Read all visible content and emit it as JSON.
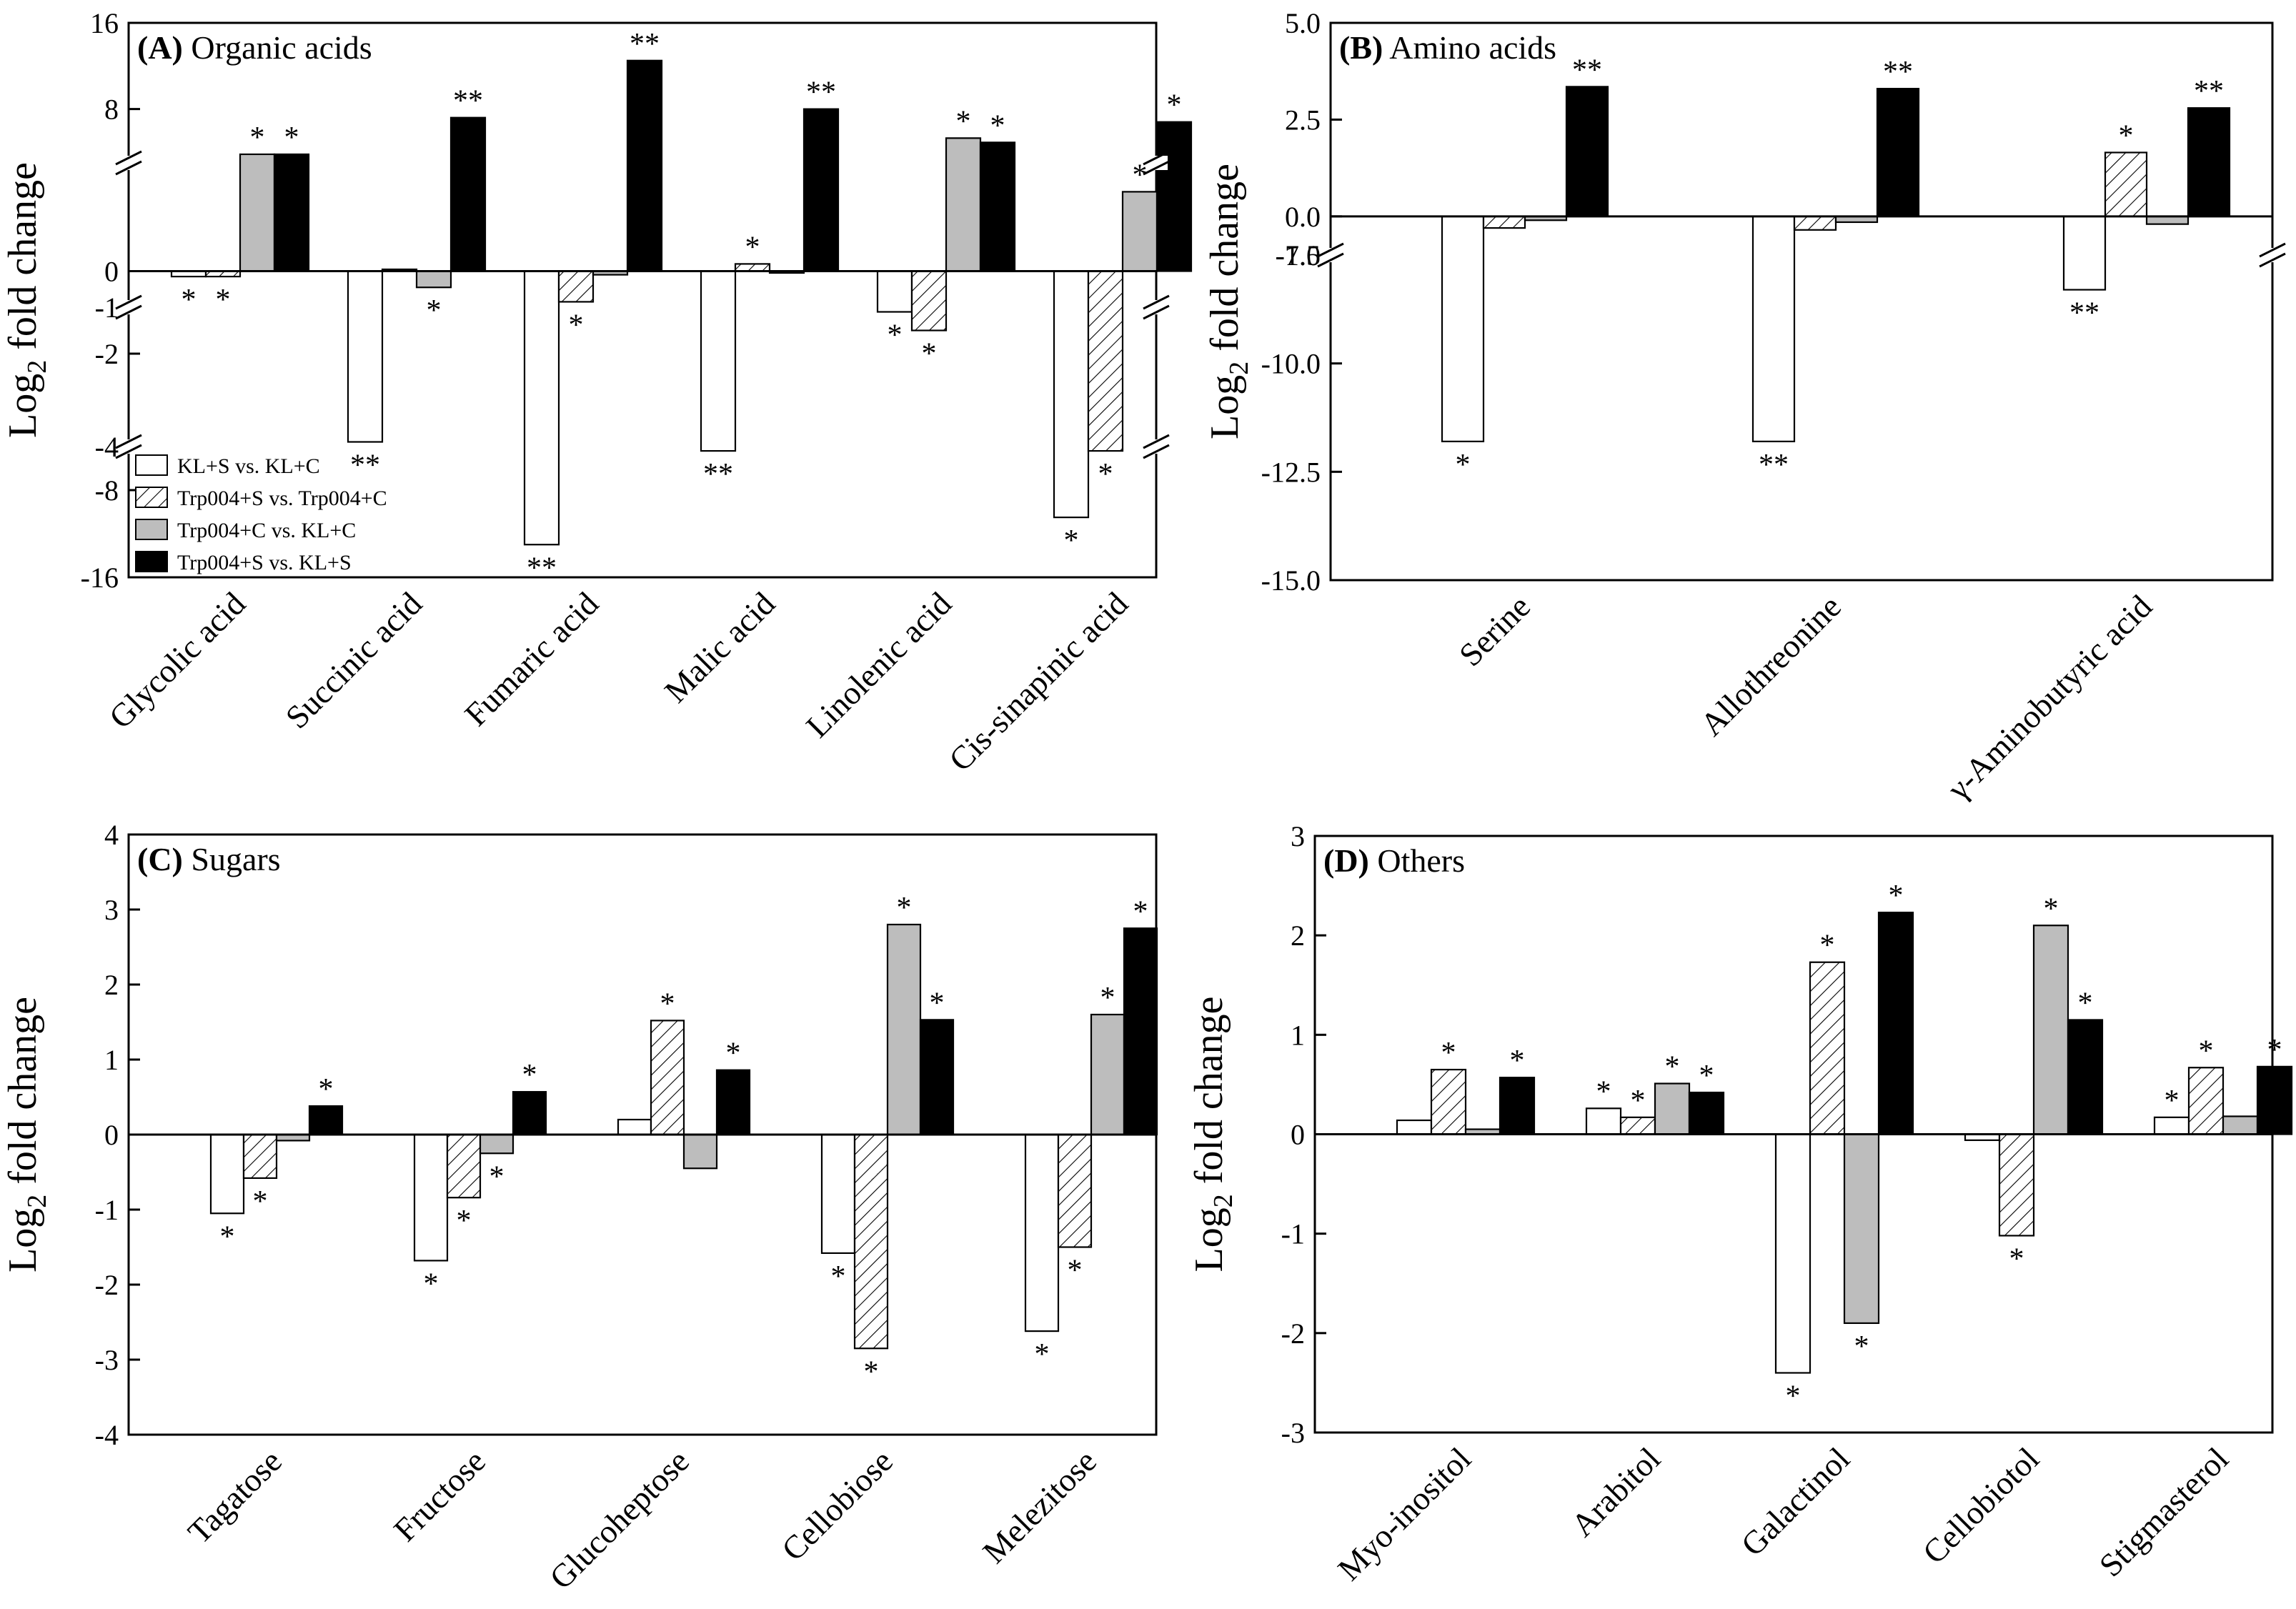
{
  "figure": {
    "ylabel_main": "Log",
    "ylabel_sub": "2",
    "ylabel_rest": " fold change"
  },
  "legend": {
    "entries": [
      {
        "label": "KL+S vs. KL+C",
        "fill": "white"
      },
      {
        "label": "Trp004+S vs. Trp004+C",
        "fill": "hatch"
      },
      {
        "label": "Trp004+C vs. KL+C",
        "fill": "gray"
      },
      {
        "label": "Trp004+S vs. KL+S",
        "fill": "black"
      }
    ]
  },
  "colors": {
    "white": "#ffffff",
    "gray": "#bdbdbd",
    "black": "#000000",
    "axis": "#000000"
  },
  "chart_data": [
    {
      "type": "bar",
      "panel_label": "(A)",
      "title": "Organic acids",
      "categories": [
        "Glycolic acid",
        "Succinic acid",
        "Fumaric acid",
        "Malic acid",
        "Linolenic acid",
        "Cis-sinapinic acid"
      ],
      "axis_breaks": [
        {
          "range": [
            -16,
            -4
          ],
          "ticks": [
            -16,
            -8
          ]
        },
        {
          "range": [
            -4,
            -1
          ],
          "ticks": [
            -4,
            -2
          ]
        },
        {
          "range": [
            -1,
            3
          ],
          "ticks": [
            -1,
            0
          ]
        },
        {
          "range": [
            3,
            16
          ],
          "ticks": [
            8,
            16
          ]
        }
      ],
      "series": [
        {
          "name": "KL+S vs. KL+C",
          "values": [
            -0.15,
            -3.9,
            -13,
            -4.4,
            -1.1,
            -10.5
          ],
          "marks": [
            "*",
            "**",
            "**",
            "**",
            "*",
            "*"
          ]
        },
        {
          "name": "Trp004+S vs. Trp004+C",
          "values": [
            -0.15,
            0.05,
            -0.85,
            0.2,
            -1.5,
            -4.4
          ],
          "marks": [
            "*",
            "",
            "*",
            "*",
            "*",
            "*"
          ]
        },
        {
          "name": "Trp004+C vs. KL+C",
          "values": [
            3.8,
            -0.45,
            -0.1,
            -0.05,
            5.3,
            2.2
          ],
          "marks": [
            "*",
            "*",
            "",
            "",
            "*",
            "*"
          ]
        },
        {
          "name": "Trp004+S vs. KL+S",
          "values": [
            3.8,
            7.2,
            12.5,
            8.0,
            4.9,
            6.8
          ],
          "marks": [
            "*",
            "**",
            "**",
            "**",
            "*",
            "*"
          ]
        }
      ]
    },
    {
      "type": "bar",
      "panel_label": "(B)",
      "title": "Amino acids",
      "categories": [
        "Serine",
        "Allothreonine",
        "γ-Aminobutyric acid"
      ],
      "axis_breaks": [
        {
          "range": [
            -15,
            -7.5
          ],
          "ticks": [
            -15.0,
            -12.5,
            -10.0,
            -7.5
          ]
        },
        {
          "range": [
            -1,
            5
          ],
          "ticks": [
            -1,
            0.0,
            2.5,
            5.0
          ]
        }
      ],
      "series": [
        {
          "name": "KL+S vs. KL+C",
          "values": [
            -11.8,
            -11.8,
            -8.3
          ],
          "marks": [
            "*",
            "**",
            "**"
          ]
        },
        {
          "name": "Trp004+S vs. Trp004+C",
          "values": [
            -0.3,
            -0.35,
            1.65
          ],
          "marks": [
            "",
            "",
            "*"
          ]
        },
        {
          "name": "Trp004+C vs. KL+C",
          "values": [
            -0.1,
            -0.15,
            -0.2
          ],
          "marks": [
            "",
            "",
            ""
          ]
        },
        {
          "name": "Trp004+S vs. KL+S",
          "values": [
            3.35,
            3.3,
            2.8
          ],
          "marks": [
            "**",
            "**",
            "**"
          ]
        }
      ]
    },
    {
      "type": "bar",
      "panel_label": "(C)",
      "title": "Sugars",
      "categories": [
        "Tagatose",
        "Fructose",
        "Glucoheptose",
        "Cellobiose",
        "Melezitose"
      ],
      "ylim": [
        -4,
        4
      ],
      "yticks": [
        -4,
        -3,
        -2,
        -1,
        0,
        1,
        2,
        3,
        4
      ],
      "series": [
        {
          "name": "KL+S vs. KL+C",
          "values": [
            -1.05,
            -1.68,
            0.2,
            -1.58,
            -2.62
          ],
          "marks": [
            "*",
            "*",
            "",
            "*",
            "*"
          ]
        },
        {
          "name": "Trp004+S vs. Trp004+C",
          "values": [
            -0.58,
            -0.84,
            1.52,
            -2.85,
            -1.5
          ],
          "marks": [
            "*",
            "*",
            "*",
            "*",
            "*"
          ]
        },
        {
          "name": "Trp004+C vs. KL+C",
          "values": [
            -0.08,
            -0.25,
            -0.45,
            2.8,
            1.6
          ],
          "marks": [
            "",
            "*",
            "",
            "*",
            "*"
          ]
        },
        {
          "name": "Trp004+S vs. KL+S",
          "values": [
            0.38,
            0.57,
            0.86,
            1.53,
            2.75
          ],
          "marks": [
            "*",
            "*",
            "*",
            "*",
            "*"
          ]
        }
      ]
    },
    {
      "type": "bar",
      "panel_label": "(D)",
      "title": "Others",
      "categories": [
        "Myo-inositol",
        "Arabitol",
        "Galactinol",
        "Cellobiotol",
        "Stigmasterol"
      ],
      "ylim": [
        -3,
        3
      ],
      "yticks": [
        -3,
        -2,
        -1,
        0,
        1,
        2,
        3
      ],
      "series": [
        {
          "name": "KL+S vs. KL+C",
          "values": [
            0.14,
            0.26,
            -2.4,
            -0.06,
            0.17
          ],
          "marks": [
            "",
            "*",
            "*",
            "",
            "*"
          ]
        },
        {
          "name": "Trp004+S vs. Trp004+C",
          "values": [
            0.65,
            0.17,
            1.73,
            -1.02,
            0.67
          ],
          "marks": [
            "*",
            "*",
            "*",
            "*",
            "*"
          ]
        },
        {
          "name": "Trp004+C vs. KL+C",
          "values": [
            0.05,
            0.51,
            -1.9,
            2.1,
            0.18
          ],
          "marks": [
            "",
            "*",
            "*",
            "*",
            ""
          ]
        },
        {
          "name": "Trp004+S vs. KL+S",
          "values": [
            0.57,
            0.42,
            2.23,
            1.15,
            0.68
          ],
          "marks": [
            "*",
            "*",
            "*",
            "*",
            "*"
          ]
        }
      ]
    }
  ]
}
